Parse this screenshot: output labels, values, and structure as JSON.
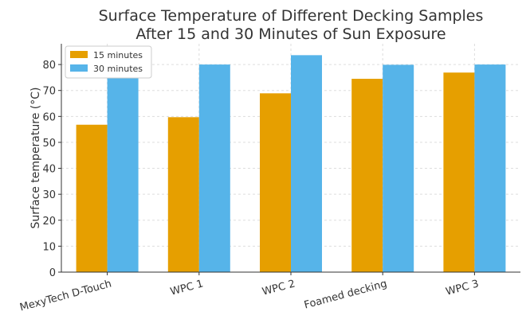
{
  "chart_data": {
    "type": "bar",
    "title": "Surface Temperature of Different Decking Samples\nAfter 15 and 30 Minutes of Sun Exposure",
    "xlabel": "",
    "ylabel": "Surface temperature (°C)",
    "ylim": [
      0,
      88
    ],
    "yticks": [
      0,
      10,
      20,
      30,
      40,
      50,
      60,
      70,
      80
    ],
    "categories": [
      "MexyTech D-Touch",
      "WPC 1",
      "WPC 2",
      "Foamed decking",
      "WPC 3"
    ],
    "series": [
      {
        "name": "15 minutes",
        "color": "#E69F00",
        "values": [
          56.8,
          59.7,
          68.9,
          74.5,
          76.9
        ]
      },
      {
        "name": "30 minutes",
        "color": "#56B4E9",
        "values": [
          80,
          80,
          83.6,
          79.9,
          80
        ]
      }
    ],
    "grid": true,
    "legend": "top-left"
  }
}
